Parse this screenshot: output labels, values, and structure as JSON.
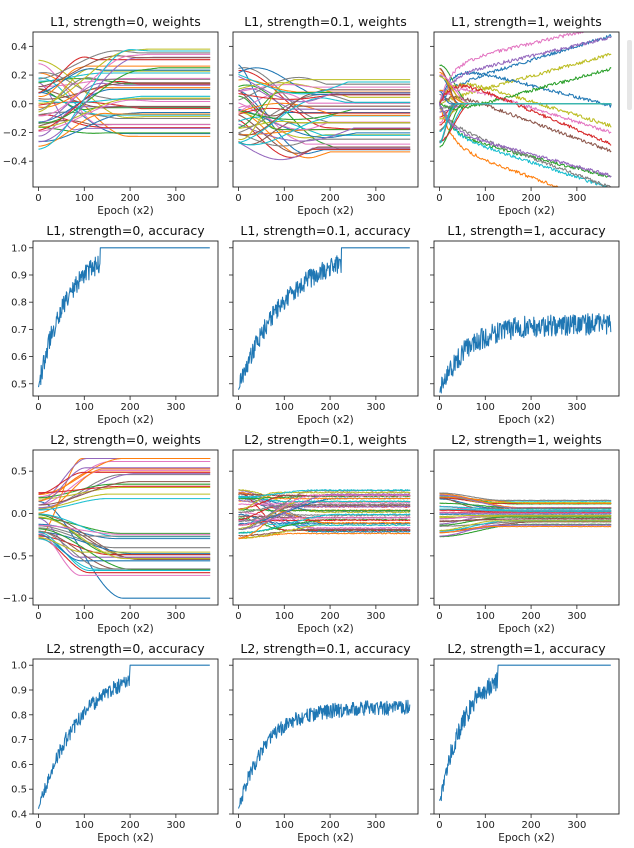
{
  "chart_data": [
    {
      "id": "p00",
      "type": "line",
      "kind": "weights",
      "title": "L1, strength=0, weights",
      "xlabel": "Epoch (x2)",
      "xlim": [
        -12,
        392
      ],
      "ylim": [
        -0.58,
        0.5
      ],
      "yticks": [
        -0.4,
        -0.2,
        0.0,
        0.2,
        0.4
      ],
      "ytick_labels": [
        "−0.4",
        "−0.2",
        "0.0",
        "0.2",
        "0.4"
      ],
      "xticks": [
        0,
        100,
        200,
        300
      ],
      "xtick_labels": [
        "0",
        "100",
        "200",
        "300"
      ],
      "n_series": 40,
      "n_points": 190,
      "x_max": 375,
      "starts": {
        "min": -0.32,
        "max": 0.32
      },
      "ends": {
        "min": -0.24,
        "max": 0.39
      },
      "bump": 0.04,
      "hump": 0.0,
      "noise": 0.0,
      "pattern": "smooth-converge"
    },
    {
      "id": "p01",
      "type": "line",
      "kind": "weights",
      "title": "L1, strength=0.1, weights",
      "xlabel": "Epoch (x2)",
      "xlim": [
        -12,
        392
      ],
      "ylim": [
        -0.58,
        0.5
      ],
      "yticks": [
        -0.4,
        -0.2,
        0.0,
        0.2,
        0.4
      ],
      "ytick_labels": [
        "−0.4",
        "−0.2",
        "0.0",
        "0.2",
        "0.4"
      ],
      "xticks": [
        0,
        100,
        200,
        300
      ],
      "xtick_labels": [
        "0",
        "100",
        "200",
        "300"
      ],
      "n_series": 40,
      "n_points": 190,
      "x_max": 375,
      "starts": {
        "min": -0.3,
        "max": 0.3
      },
      "ends": {
        "min": -0.35,
        "max": 0.17
      },
      "bump": 0.1,
      "hump": 0.0,
      "noise": 0.0,
      "pattern": "smooth-converge"
    },
    {
      "id": "p02",
      "type": "line",
      "kind": "weights",
      "title": "L1, strength=1, weights",
      "xlabel": "Epoch (x2)",
      "xlim": [
        -12,
        392
      ],
      "ylim": [
        -0.58,
        0.5
      ],
      "yticks": [
        -0.4,
        -0.2,
        0.0,
        0.2,
        0.4
      ],
      "ytick_labels": [
        "−0.4",
        "−0.2",
        "0.0",
        "0.2",
        "0.4"
      ],
      "xticks": [
        0,
        100,
        200,
        300
      ],
      "xtick_labels": [
        "0",
        "100",
        "200",
        "300"
      ],
      "n_series": 40,
      "n_points": 190,
      "x_max": 375,
      "starts": {
        "min": -0.3,
        "max": 0.3
      },
      "ends": {
        "min": -0.5,
        "max": 0.37
      },
      "bump": 0.0,
      "hump": 0.0,
      "noise": 0.008,
      "pattern": "collapse-to-zero"
    },
    {
      "id": "p10",
      "type": "line",
      "kind": "accuracy",
      "title": "L1, strength=0, accuracy",
      "xlabel": "Epoch (x2)",
      "xlim": [
        -12,
        392
      ],
      "ylim": [
        0.455,
        1.025
      ],
      "yticks": [
        0.5,
        0.6,
        0.7,
        0.8,
        0.9,
        1.0
      ],
      "ytick_labels": [
        "0.5",
        "0.6",
        "0.7",
        "0.8",
        "0.9",
        "1.0"
      ],
      "xticks": [
        0,
        100,
        200,
        300
      ],
      "xtick_labels": [
        "0",
        "100",
        "200",
        "300"
      ],
      "n_series": 1,
      "n_points": 375,
      "x_max": 375,
      "start": 0.49,
      "plateau": 1.0,
      "plateau_x": 135,
      "noise": 0.035,
      "color": "#1f77b4"
    },
    {
      "id": "p11",
      "type": "line",
      "kind": "accuracy",
      "title": "L1, strength=0.1, accuracy",
      "xlabel": "Epoch (x2)",
      "xlim": [
        -12,
        392
      ],
      "ylim": [
        0.455,
        1.025
      ],
      "yticks": [
        0.5,
        0.6,
        0.7,
        0.8,
        0.9,
        1.0
      ],
      "ytick_labels": [
        "0.5",
        "0.6",
        "0.7",
        "0.8",
        "0.9",
        "1.0"
      ],
      "xticks": [
        0,
        100,
        200,
        300
      ],
      "xtick_labels": [
        "0",
        "100",
        "200",
        "300"
      ],
      "n_series": 1,
      "n_points": 375,
      "x_max": 375,
      "start": 0.48,
      "plateau": 1.0,
      "plateau_x": 225,
      "noise": 0.035,
      "color": "#1f77b4"
    },
    {
      "id": "p12",
      "type": "line",
      "kind": "accuracy",
      "title": "L1, strength=1, accuracy",
      "xlabel": "Epoch (x2)",
      "xlim": [
        -12,
        392
      ],
      "ylim": [
        0.455,
        1.025
      ],
      "yticks": [
        0.5,
        0.6,
        0.7,
        0.8,
        0.9,
        1.0
      ],
      "ytick_labels": [
        "0.5",
        "0.6",
        "0.7",
        "0.8",
        "0.9",
        "1.0"
      ],
      "xticks": [
        0,
        100,
        200,
        300
      ],
      "xtick_labels": [
        "0",
        "100",
        "200",
        "300"
      ],
      "n_series": 1,
      "n_points": 375,
      "x_max": 375,
      "start": 0.47,
      "plateau": 0.72,
      "plateau_x": 9999,
      "noise": 0.04,
      "color": "#1f77b4"
    },
    {
      "id": "p20",
      "type": "line",
      "kind": "weights",
      "title": "L2, strength=0, weights",
      "xlabel": "Epoch (x2)",
      "xlim": [
        -12,
        392
      ],
      "ylim": [
        -1.08,
        0.75
      ],
      "yticks": [
        -1.0,
        -0.5,
        0.0,
        0.5
      ],
      "ytick_labels": [
        "−1.0",
        "−0.5",
        "0.0",
        "0.5"
      ],
      "xticks": [
        0,
        100,
        200,
        300
      ],
      "xtick_labels": [
        "0",
        "100",
        "200",
        "300"
      ],
      "n_series": 40,
      "n_points": 190,
      "x_max": 375,
      "starts": {
        "min": -0.3,
        "max": 0.25
      },
      "ends": {
        "min": -1.0,
        "max": 0.65
      },
      "bump": 0.0,
      "hump": 0.0,
      "noise": 0.0,
      "pattern": "spread-out"
    },
    {
      "id": "p21",
      "type": "line",
      "kind": "weights",
      "title": "L2, strength=0.1, weights",
      "xlabel": "Epoch (x2)",
      "xlim": [
        -12,
        392
      ],
      "ylim": [
        -1.08,
        0.75
      ],
      "yticks": [
        -1.0,
        -0.5,
        0.0,
        0.5
      ],
      "ytick_labels": [
        "−1.0",
        "−0.5",
        "0.0",
        "0.5"
      ],
      "xticks": [
        0,
        100,
        200,
        300
      ],
      "xtick_labels": [
        "0",
        "100",
        "200",
        "300"
      ],
      "n_series": 40,
      "n_points": 190,
      "x_max": 375,
      "starts": {
        "min": -0.3,
        "max": 0.28
      },
      "ends": {
        "min": -0.24,
        "max": 0.28
      },
      "bump": 0.0,
      "hump": 0.0,
      "noise": 0.012,
      "pattern": "smooth-converge"
    },
    {
      "id": "p22",
      "type": "line",
      "kind": "weights",
      "title": "L2, strength=1, weights",
      "xlabel": "Epoch (x2)",
      "xlim": [
        -12,
        392
      ],
      "ylim": [
        -1.08,
        0.75
      ],
      "yticks": [
        -1.0,
        -0.5,
        0.0,
        0.5
      ],
      "ytick_labels": [
        "−1.0",
        "−0.5",
        "0.0",
        "0.5"
      ],
      "xticks": [
        0,
        100,
        200,
        300
      ],
      "xtick_labels": [
        "0",
        "100",
        "200",
        "300"
      ],
      "n_series": 40,
      "n_points": 190,
      "x_max": 375,
      "starts": {
        "min": -0.3,
        "max": 0.26
      },
      "ends": {
        "min": -0.17,
        "max": 0.17
      },
      "bump": 0.0,
      "hump": 0.0,
      "noise": 0.004,
      "pattern": "shrink"
    },
    {
      "id": "p30",
      "type": "line",
      "kind": "accuracy",
      "title": "L2, strength=0, accuracy",
      "xlabel": "Epoch (x2)",
      "xlim": [
        -12,
        392
      ],
      "ylim": [
        0.4,
        1.025
      ],
      "yticks": [
        0.4,
        0.5,
        0.6,
        0.7,
        0.8,
        0.9,
        1.0
      ],
      "ytick_labels": [
        "0.4",
        "0.5",
        "0.6",
        "0.7",
        "0.8",
        "0.9",
        "1.0"
      ],
      "xticks": [
        0,
        100,
        200,
        300
      ],
      "xtick_labels": [
        "0",
        "100",
        "200",
        "300"
      ],
      "n_series": 1,
      "n_points": 375,
      "x_max": 375,
      "start": 0.42,
      "plateau": 1.0,
      "plateau_x": 200,
      "noise": 0.03,
      "color": "#1f77b4"
    },
    {
      "id": "p31",
      "type": "line",
      "kind": "accuracy",
      "title": "L2, strength=0.1, accuracy",
      "xlabel": "Epoch (x2)",
      "xlim": [
        -12,
        392
      ],
      "ylim": [
        0.4,
        1.025
      ],
      "yticks": [
        0.4,
        0.5,
        0.6,
        0.7,
        0.8,
        0.9,
        1.0
      ],
      "ytick_labels": [
        "0.4",
        "0.5",
        "0.6",
        "0.7",
        "0.8",
        "0.9",
        "1.0"
      ],
      "xticks": [
        0,
        100,
        200,
        300
      ],
      "xtick_labels": [
        "0",
        "100",
        "200",
        "300"
      ],
      "n_series": 1,
      "n_points": 375,
      "x_max": 375,
      "start": 0.42,
      "plateau": 0.83,
      "plateau_x": 9999,
      "noise": 0.03,
      "color": "#1f77b4"
    },
    {
      "id": "p32",
      "type": "line",
      "kind": "accuracy",
      "title": "L2, strength=1, accuracy",
      "xlabel": "Epoch (x2)",
      "xlim": [
        -12,
        392
      ],
      "ylim": [
        0.4,
        1.025
      ],
      "yticks": [
        0.4,
        0.5,
        0.6,
        0.7,
        0.8,
        0.9,
        1.0
      ],
      "ytick_labels": [
        "0.4",
        "0.5",
        "0.6",
        "0.7",
        "0.8",
        "0.9",
        "1.0"
      ],
      "xticks": [
        0,
        100,
        200,
        300
      ],
      "xtick_labels": [
        "0",
        "100",
        "200",
        "300"
      ],
      "n_series": 1,
      "n_points": 375,
      "x_max": 375,
      "start": 0.45,
      "plateau": 1.0,
      "plateau_x": 128,
      "noise": 0.04,
      "color": "#1f77b4"
    }
  ],
  "palette": [
    "#1f77b4",
    "#ff7f0e",
    "#2ca02c",
    "#d62728",
    "#9467bd",
    "#8c564b",
    "#e377c2",
    "#7f7f7f",
    "#bcbd22",
    "#17becf"
  ]
}
